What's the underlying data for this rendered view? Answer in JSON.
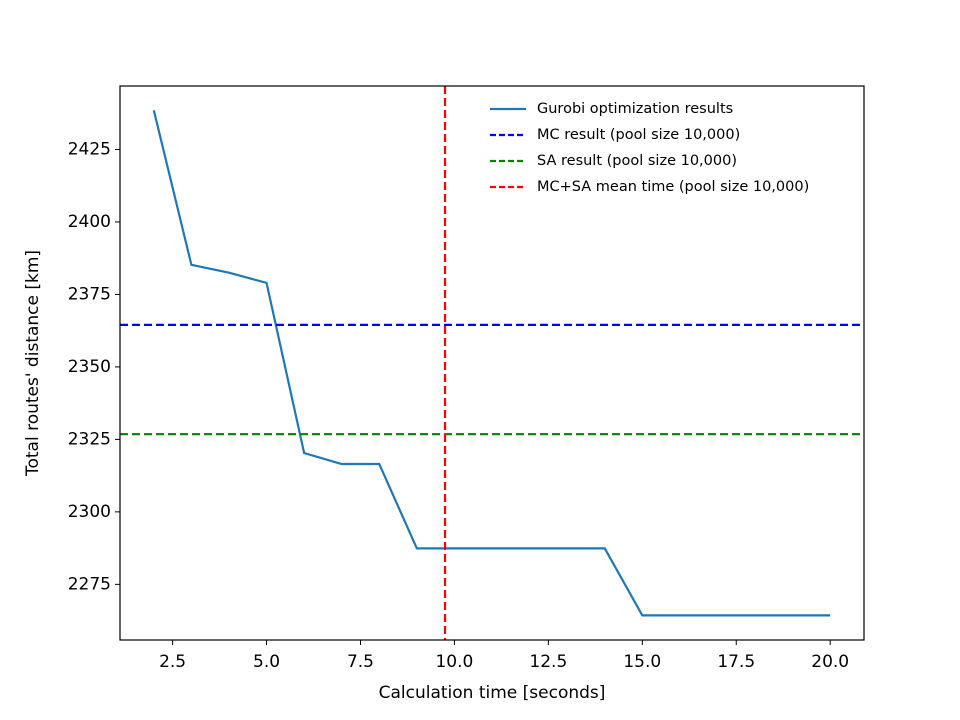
{
  "chart_data": {
    "type": "line",
    "x_label": "Calculation time [seconds]",
    "y_label": "Total routes' distance [km]",
    "x": [
      2,
      3,
      4,
      5,
      6,
      7,
      8,
      9,
      10,
      11,
      12,
      13,
      14,
      15,
      16,
      17,
      18,
      19,
      20
    ],
    "series": [
      {
        "name": "Gurobi optimization results",
        "color": "#1f77b4",
        "values": [
          2438.5,
          2385.2,
          2382.5,
          2379.0,
          2320.3,
          2316.5,
          2316.5,
          2287.4,
          2287.4,
          2287.4,
          2287.4,
          2287.4,
          2287.4,
          2264.3,
          2264.3,
          2264.3,
          2264.3,
          2264.3,
          2264.3
        ]
      }
    ],
    "hlines": [
      {
        "name": "MC result (pool size 10,000)",
        "color": "#0000ff",
        "y": 2364.5
      },
      {
        "name": "SA result (pool size 10,000)",
        "color": "#008000",
        "y": 2326.8
      }
    ],
    "vlines": [
      {
        "name": "MC+SA mean time (pool size 10,000)",
        "color": "#ff0000",
        "x": 9.75
      }
    ],
    "xlim": [
      1.1,
      20.9
    ],
    "ylim": [
      2255.8,
      2446.9
    ],
    "xticks": [
      2.5,
      {
        "value": 5,
        "label": "5.0"
      },
      7.5,
      {
        "value": 10,
        "label": "10.0"
      },
      12.5,
      {
        "value": 15,
        "label": "15.0"
      },
      17.5,
      {
        "value": 20,
        "label": "20.0"
      }
    ],
    "yticks": [
      2275,
      2300,
      2325,
      2350,
      2375,
      2400,
      2425
    ],
    "legend": "upper right"
  }
}
